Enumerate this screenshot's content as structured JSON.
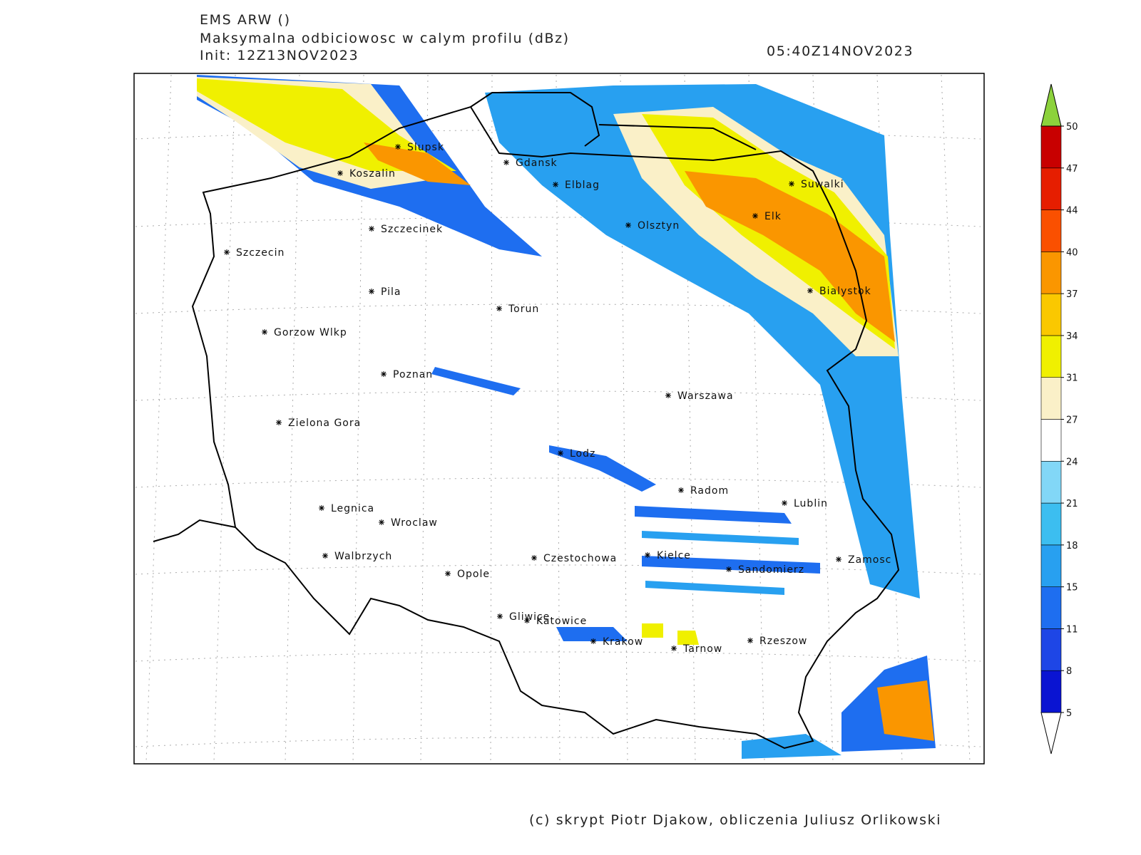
{
  "header": {
    "model": "EMS ARW ()",
    "title": "Maksymalna odbiciowosc w calym profilu (dBz)",
    "init": "Init: 12Z13NOV2023",
    "valid": "05:40Z14NOV2023"
  },
  "cities": [
    "Slupsk",
    "Koszalin",
    "Gdansk",
    "Elblag",
    "Suwalki",
    "Elk",
    "Olsztyn",
    "Szczecinek",
    "Szczecin",
    "Pila",
    "Torun",
    "Bialystok",
    "Gorzow Wlkp",
    "Poznan",
    "Warszawa",
    "Zielona Gora",
    "Lodz",
    "Radom",
    "Lublin",
    "Legnica",
    "Wroclaw",
    "Kielce",
    "Walbrzych",
    "Czestochowa",
    "Zamosc",
    "Sandomierz",
    "Opole",
    "Gliwice",
    "Katowice",
    "Krakow",
    "Tarnow",
    "Rzeszow"
  ],
  "colorbar": {
    "levels": [
      5,
      8,
      11,
      15,
      18,
      21,
      24,
      27,
      31,
      34,
      37,
      40,
      44,
      47,
      50
    ],
    "colors": [
      "#ffffff",
      "#0a14d2",
      "#1e46e6",
      "#1e6ef0",
      "#28a0f0",
      "#3cbef0",
      "#82d7f7",
      "#ffffff",
      "#faf0c8",
      "#f0f000",
      "#fac800",
      "#fa9600",
      "#fa5000",
      "#e61e00",
      "#c80000",
      "#8cd23c"
    ]
  },
  "footer": "(c) skrypt Piotr Djakow, obliczenia Juliusz Orlikowski"
}
